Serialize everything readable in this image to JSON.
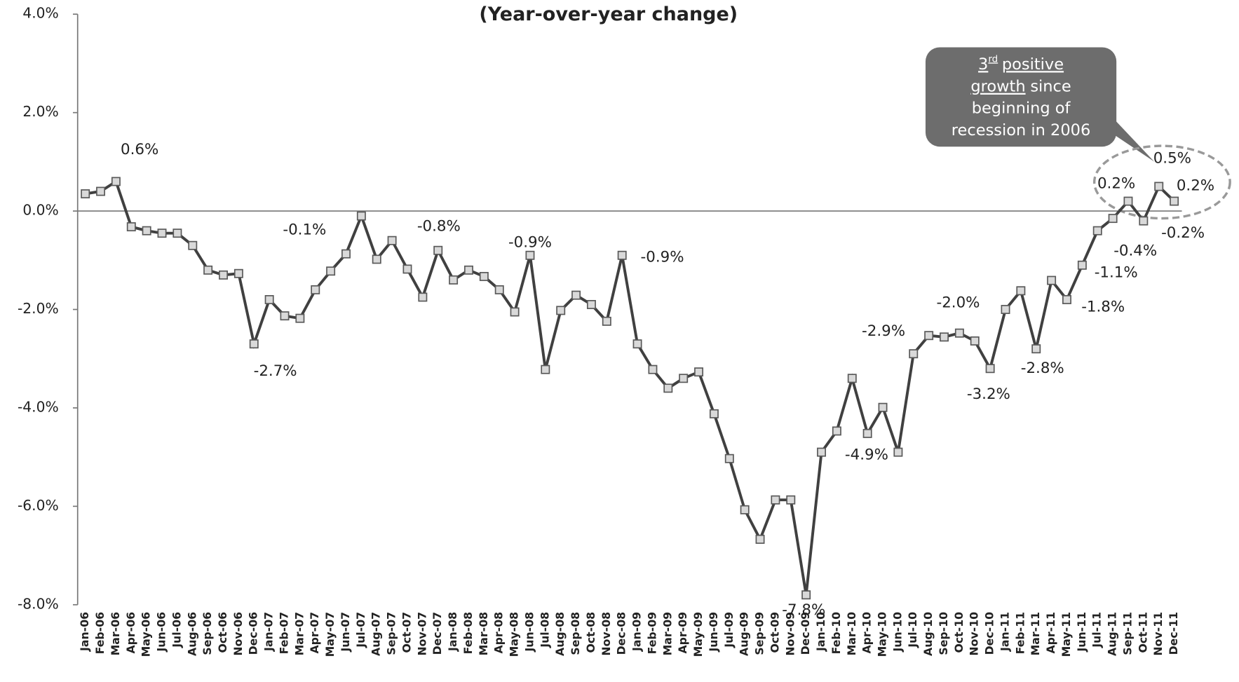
{
  "chart_data": {
    "type": "line",
    "title": "(Year-over-year change)",
    "categories": [
      "Jan-06",
      "Feb-06",
      "Mar-06",
      "Apr-06",
      "May-06",
      "Jun-06",
      "Jul-06",
      "Aug-06",
      "Sep-06",
      "Oct-06",
      "Nov-06",
      "Dec-06",
      "Jan-07",
      "Feb-07",
      "Mar-07",
      "Apr-07",
      "May-07",
      "Jun-07",
      "Jul-07",
      "Aug-07",
      "Sep-07",
      "Oct-07",
      "Nov-07",
      "Dec-07",
      "Jan-08",
      "Feb-08",
      "Mar-08",
      "Apr-08",
      "May-08",
      "Jun-08",
      "Jul-08",
      "Aug-08",
      "Sep-08",
      "Oct-08",
      "Nov-08",
      "Dec-08",
      "Jan-09",
      "Feb-09",
      "Mar-09",
      "Apr-09",
      "May-09",
      "Jun-09",
      "Jul-09",
      "Aug-09",
      "Sep-09",
      "Oct-09",
      "Nov-09",
      "Dec-09",
      "Jan-10",
      "Feb-10",
      "Mar-10",
      "Apr-10",
      "May-10",
      "Jun-10",
      "Jul-10",
      "Aug-10",
      "Sep-10",
      "Oct-10",
      "Nov-10",
      "Dec-10",
      "Jan-11",
      "Feb-11",
      "Mar-11",
      "Apr-11",
      "May-11",
      "Jun-11",
      "Jul-11",
      "Aug-11",
      "Sep-11",
      "Oct-11",
      "Nov-11",
      "Dec-11"
    ],
    "values": [
      0.35,
      0.4,
      0.6,
      -0.32,
      -0.4,
      -0.45,
      -0.45,
      -0.7,
      -1.2,
      -1.3,
      -1.27,
      -2.7,
      -1.8,
      -2.13,
      -2.18,
      -1.6,
      -1.22,
      -0.87,
      -0.1,
      -0.98,
      -0.6,
      -1.18,
      -1.75,
      -0.8,
      -1.4,
      -1.2,
      -1.33,
      -1.6,
      -2.05,
      -0.9,
      -3.22,
      -2.02,
      -1.71,
      -1.9,
      -2.24,
      -0.9,
      -2.7,
      -3.22,
      -3.6,
      -3.4,
      -3.27,
      -4.12,
      -5.03,
      -6.07,
      -6.67,
      -5.87,
      -5.87,
      -7.8,
      -4.9,
      -4.47,
      -3.4,
      -4.52,
      -3.99,
      -4.9,
      -2.9,
      -2.53,
      -2.56,
      -2.48,
      -2.64,
      -3.2,
      -2.0,
      -1.62,
      -2.8,
      -1.41,
      -1.8,
      -1.1,
      -0.4,
      -0.15,
      0.2,
      -0.2,
      0.5,
      0.2
    ],
    "value_labels": [
      null,
      null,
      "0.6%",
      null,
      null,
      null,
      null,
      null,
      null,
      null,
      null,
      "-2.7%",
      null,
      null,
      null,
      null,
      null,
      null,
      "-0.1%",
      null,
      null,
      null,
      null,
      "-0.8%",
      null,
      null,
      null,
      null,
      null,
      "-0.9%",
      null,
      null,
      null,
      null,
      null,
      "-0.9%",
      null,
      null,
      null,
      null,
      null,
      null,
      null,
      null,
      null,
      null,
      null,
      "-7.8%",
      null,
      null,
      null,
      null,
      null,
      "-4.9%",
      "-2.9%",
      null,
      null,
      null,
      null,
      "-3.2%",
      "-2.0%",
      null,
      "-2.8%",
      null,
      "-1.8%",
      "-1.1%",
      "-0.4%",
      null,
      "0.2%",
      "-0.2%",
      "0.5%",
      "0.2%"
    ],
    "color": "#404040",
    "marker_color": "#d9d9d9",
    "ylim": [
      -8,
      4
    ],
    "yticks": [
      {
        "value": -8,
        "label": "-8.0%"
      },
      {
        "value": -6,
        "label": "-6.0%"
      },
      {
        "value": -4,
        "label": "-4.0%"
      },
      {
        "value": -2,
        "label": "-2.0%"
      },
      {
        "value": 0,
        "label": "0.0%"
      },
      {
        "value": 2,
        "label": "2.0%"
      },
      {
        "value": 4,
        "label": "4.0%"
      }
    ],
    "annotation": {
      "parts": [
        "3",
        "rd",
        "positive",
        "growth",
        "since",
        "beginning of",
        "recession in 2006"
      ]
    }
  }
}
